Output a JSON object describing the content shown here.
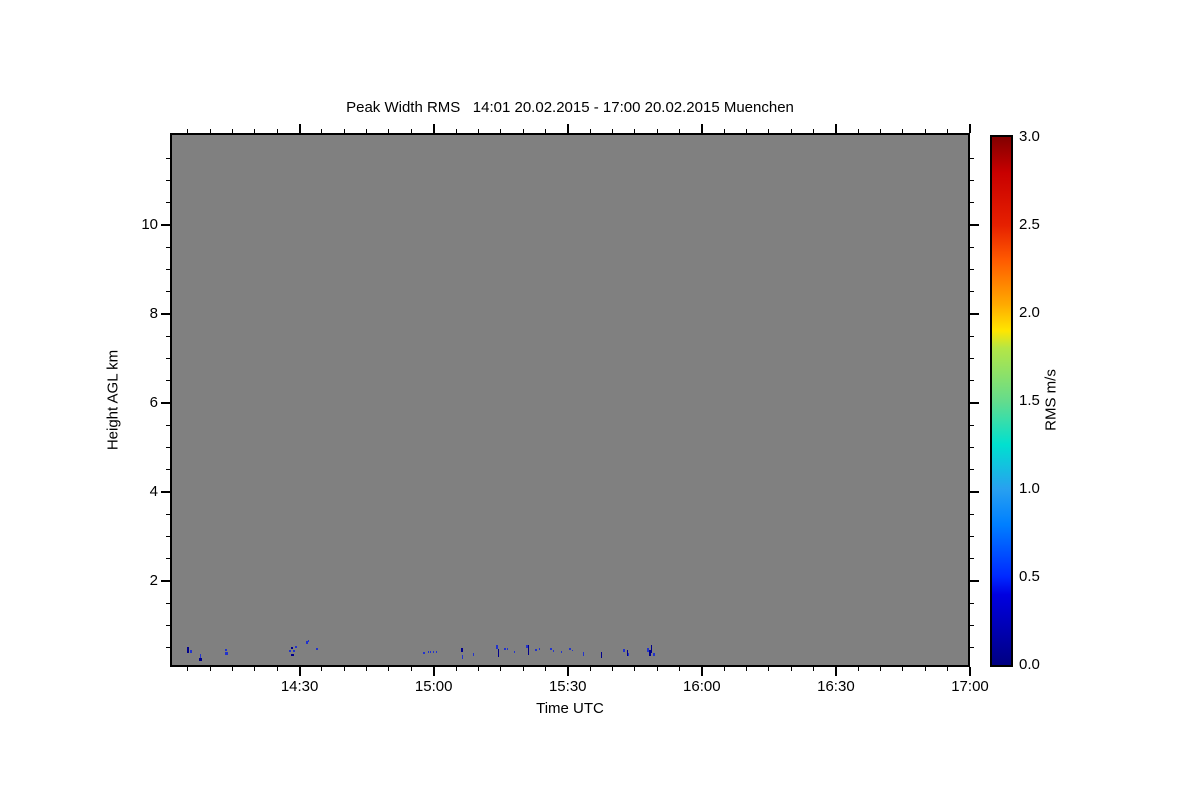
{
  "page": {
    "background": "#ffffff"
  },
  "chart_data": {
    "type": "heatmap",
    "title": "Peak Width RMS   14:01 20.02.2015 - 17:00 20.02.2015 Muenchen",
    "xlabel": "Time UTC",
    "ylabel": "Height AGL km",
    "colorbar_label": "RMS m/s",
    "x_range_hours_utc": [
      14.0167,
      17.0
    ],
    "y_range_km": [
      0.07,
      12.07
    ],
    "x_major_ticks": [
      {
        "v": 14.5,
        "label": "14:30"
      },
      {
        "v": 15.0,
        "label": "15:00"
      },
      {
        "v": 15.5,
        "label": "15:30"
      },
      {
        "v": 16.0,
        "label": "16:00"
      },
      {
        "v": 16.5,
        "label": "16:30"
      },
      {
        "v": 17.0,
        "label": "17:00"
      }
    ],
    "x_minor_step_minutes": 5,
    "y_major_ticks": [
      {
        "v": 2,
        "label": "2"
      },
      {
        "v": 4,
        "label": "4"
      },
      {
        "v": 6,
        "label": "6"
      },
      {
        "v": 8,
        "label": "8"
      },
      {
        "v": 10,
        "label": "10"
      }
    ],
    "y_minor_step_km": 0.5,
    "no_data_color": "#808080",
    "colorbar": {
      "min": 0.0,
      "max": 3.0,
      "tick_labels": [
        {
          "v": 0.0,
          "label": "0.0"
        },
        {
          "v": 0.5,
          "label": "0.5"
        },
        {
          "v": 1.0,
          "label": "1.0"
        },
        {
          "v": 1.5,
          "label": "1.5"
        },
        {
          "v": 2.0,
          "label": "2.0"
        },
        {
          "v": 2.5,
          "label": "2.5"
        },
        {
          "v": 3.0,
          "label": "3.0"
        }
      ],
      "minor_ticks_per_major": 2,
      "gradient_stops": [
        {
          "pos": 0.0,
          "color": "#000082"
        },
        {
          "pos": 0.133,
          "color": "#0000E0"
        },
        {
          "pos": 0.167,
          "color": "#0028FF"
        },
        {
          "pos": 0.267,
          "color": "#0080FF"
        },
        {
          "pos": 0.333,
          "color": "#28A0F0"
        },
        {
          "pos": 0.417,
          "color": "#00E0D0"
        },
        {
          "pos": 0.5,
          "color": "#64DC8C"
        },
        {
          "pos": 0.6,
          "color": "#B4E646"
        },
        {
          "pos": 0.633,
          "color": "#FFE600"
        },
        {
          "pos": 0.683,
          "color": "#FFAA00"
        },
        {
          "pos": 0.767,
          "color": "#FF5A00"
        },
        {
          "pos": 0.833,
          "color": "#E62000"
        },
        {
          "pos": 0.933,
          "color": "#C80000"
        },
        {
          "pos": 1.0,
          "color": "#820000"
        }
      ]
    },
    "point_colors": [
      "#00008B",
      "#2233CC"
    ],
    "points_note": "sparse low-level returns, RMS ~0.0-0.5 m/s, below ~0.7 km AGL; t = decimal hours UTC, h = km AGL, w/p = speck pixel width/height, c = palette index",
    "points": [
      {
        "t": 14.084,
        "h": 0.45,
        "w": 2,
        "p": 6,
        "c": 0
      },
      {
        "t": 14.095,
        "h": 0.41,
        "w": 2,
        "p": 3,
        "c": 1
      },
      {
        "t": 14.129,
        "h": 0.23,
        "w": 3,
        "p": 3,
        "c": 0
      },
      {
        "t": 14.132,
        "h": 0.32,
        "w": 1,
        "p": 4,
        "c": 1
      },
      {
        "t": 14.226,
        "h": 0.45,
        "w": 2,
        "p": 2,
        "c": 1
      },
      {
        "t": 14.226,
        "h": 0.38,
        "w": 3,
        "p": 3,
        "c": 1
      },
      {
        "t": 14.464,
        "h": 0.43,
        "w": 2,
        "p": 2,
        "c": 1
      },
      {
        "t": 14.472,
        "h": 0.5,
        "w": 2,
        "p": 2,
        "c": 0
      },
      {
        "t": 14.475,
        "h": 0.34,
        "w": 3,
        "p": 2,
        "c": 0
      },
      {
        "t": 14.479,
        "h": 0.43,
        "w": 2,
        "p": 2,
        "c": 1
      },
      {
        "t": 14.487,
        "h": 0.52,
        "w": 2,
        "p": 2,
        "c": 1
      },
      {
        "t": 14.528,
        "h": 0.61,
        "w": 2,
        "p": 3,
        "c": 1
      },
      {
        "t": 14.535,
        "h": 0.65,
        "w": 1,
        "p": 2,
        "c": 1
      },
      {
        "t": 14.565,
        "h": 0.47,
        "w": 2,
        "p": 2,
        "c": 1
      },
      {
        "t": 14.964,
        "h": 0.38,
        "w": 2,
        "p": 2,
        "c": 1
      },
      {
        "t": 14.979,
        "h": 0.41,
        "w": 1,
        "p": 2,
        "c": 1
      },
      {
        "t": 14.99,
        "h": 0.41,
        "w": 1,
        "p": 2,
        "c": 1
      },
      {
        "t": 15.001,
        "h": 0.41,
        "w": 1,
        "p": 2,
        "c": 1
      },
      {
        "t": 15.012,
        "h": 0.41,
        "w": 1,
        "p": 2,
        "c": 1
      },
      {
        "t": 15.106,
        "h": 0.45,
        "w": 2,
        "p": 4,
        "c": 0
      },
      {
        "t": 15.109,
        "h": 0.29,
        "w": 1,
        "p": 4,
        "c": 1
      },
      {
        "t": 15.147,
        "h": 0.34,
        "w": 1,
        "p": 3,
        "c": 1
      },
      {
        "t": 15.236,
        "h": 0.52,
        "w": 2,
        "p": 4,
        "c": 1
      },
      {
        "t": 15.24,
        "h": 0.38,
        "w": 1,
        "p": 8,
        "c": 0
      },
      {
        "t": 15.266,
        "h": 0.47,
        "w": 2,
        "p": 2,
        "c": 1
      },
      {
        "t": 15.277,
        "h": 0.47,
        "w": 1,
        "p": 2,
        "c": 1
      },
      {
        "t": 15.303,
        "h": 0.41,
        "w": 1,
        "p": 2,
        "c": 1
      },
      {
        "t": 15.348,
        "h": 0.54,
        "w": 2,
        "p": 3,
        "c": 1
      },
      {
        "t": 15.352,
        "h": 0.45,
        "w": 1,
        "p": 10,
        "c": 0
      },
      {
        "t": 15.382,
        "h": 0.45,
        "w": 2,
        "p": 2,
        "c": 1
      },
      {
        "t": 15.396,
        "h": 0.47,
        "w": 1,
        "p": 2,
        "c": 1
      },
      {
        "t": 15.437,
        "h": 0.47,
        "w": 2,
        "p": 2,
        "c": 1
      },
      {
        "t": 15.445,
        "h": 0.43,
        "w": 1,
        "p": 2,
        "c": 1
      },
      {
        "t": 15.478,
        "h": 0.41,
        "w": 1,
        "p": 2,
        "c": 1
      },
      {
        "t": 15.508,
        "h": 0.47,
        "w": 2,
        "p": 2,
        "c": 1
      },
      {
        "t": 15.516,
        "h": 0.45,
        "w": 1,
        "p": 1,
        "c": 1
      },
      {
        "t": 15.557,
        "h": 0.36,
        "w": 1,
        "p": 4,
        "c": 1
      },
      {
        "t": 15.624,
        "h": 0.34,
        "w": 1,
        "p": 6,
        "c": 0
      },
      {
        "t": 15.71,
        "h": 0.43,
        "w": 2,
        "p": 3,
        "c": 1
      },
      {
        "t": 15.721,
        "h": 0.38,
        "w": 1,
        "p": 6,
        "c": 0
      },
      {
        "t": 15.728,
        "h": 0.34,
        "w": 1,
        "p": 3,
        "c": 1
      },
      {
        "t": 15.799,
        "h": 0.45,
        "w": 2,
        "p": 4,
        "c": 1
      },
      {
        "t": 15.806,
        "h": 0.38,
        "w": 2,
        "p": 6,
        "c": 0
      },
      {
        "t": 15.814,
        "h": 0.47,
        "w": 1,
        "p": 8,
        "c": 0
      },
      {
        "t": 15.821,
        "h": 0.34,
        "w": 2,
        "p": 3,
        "c": 1
      }
    ]
  }
}
